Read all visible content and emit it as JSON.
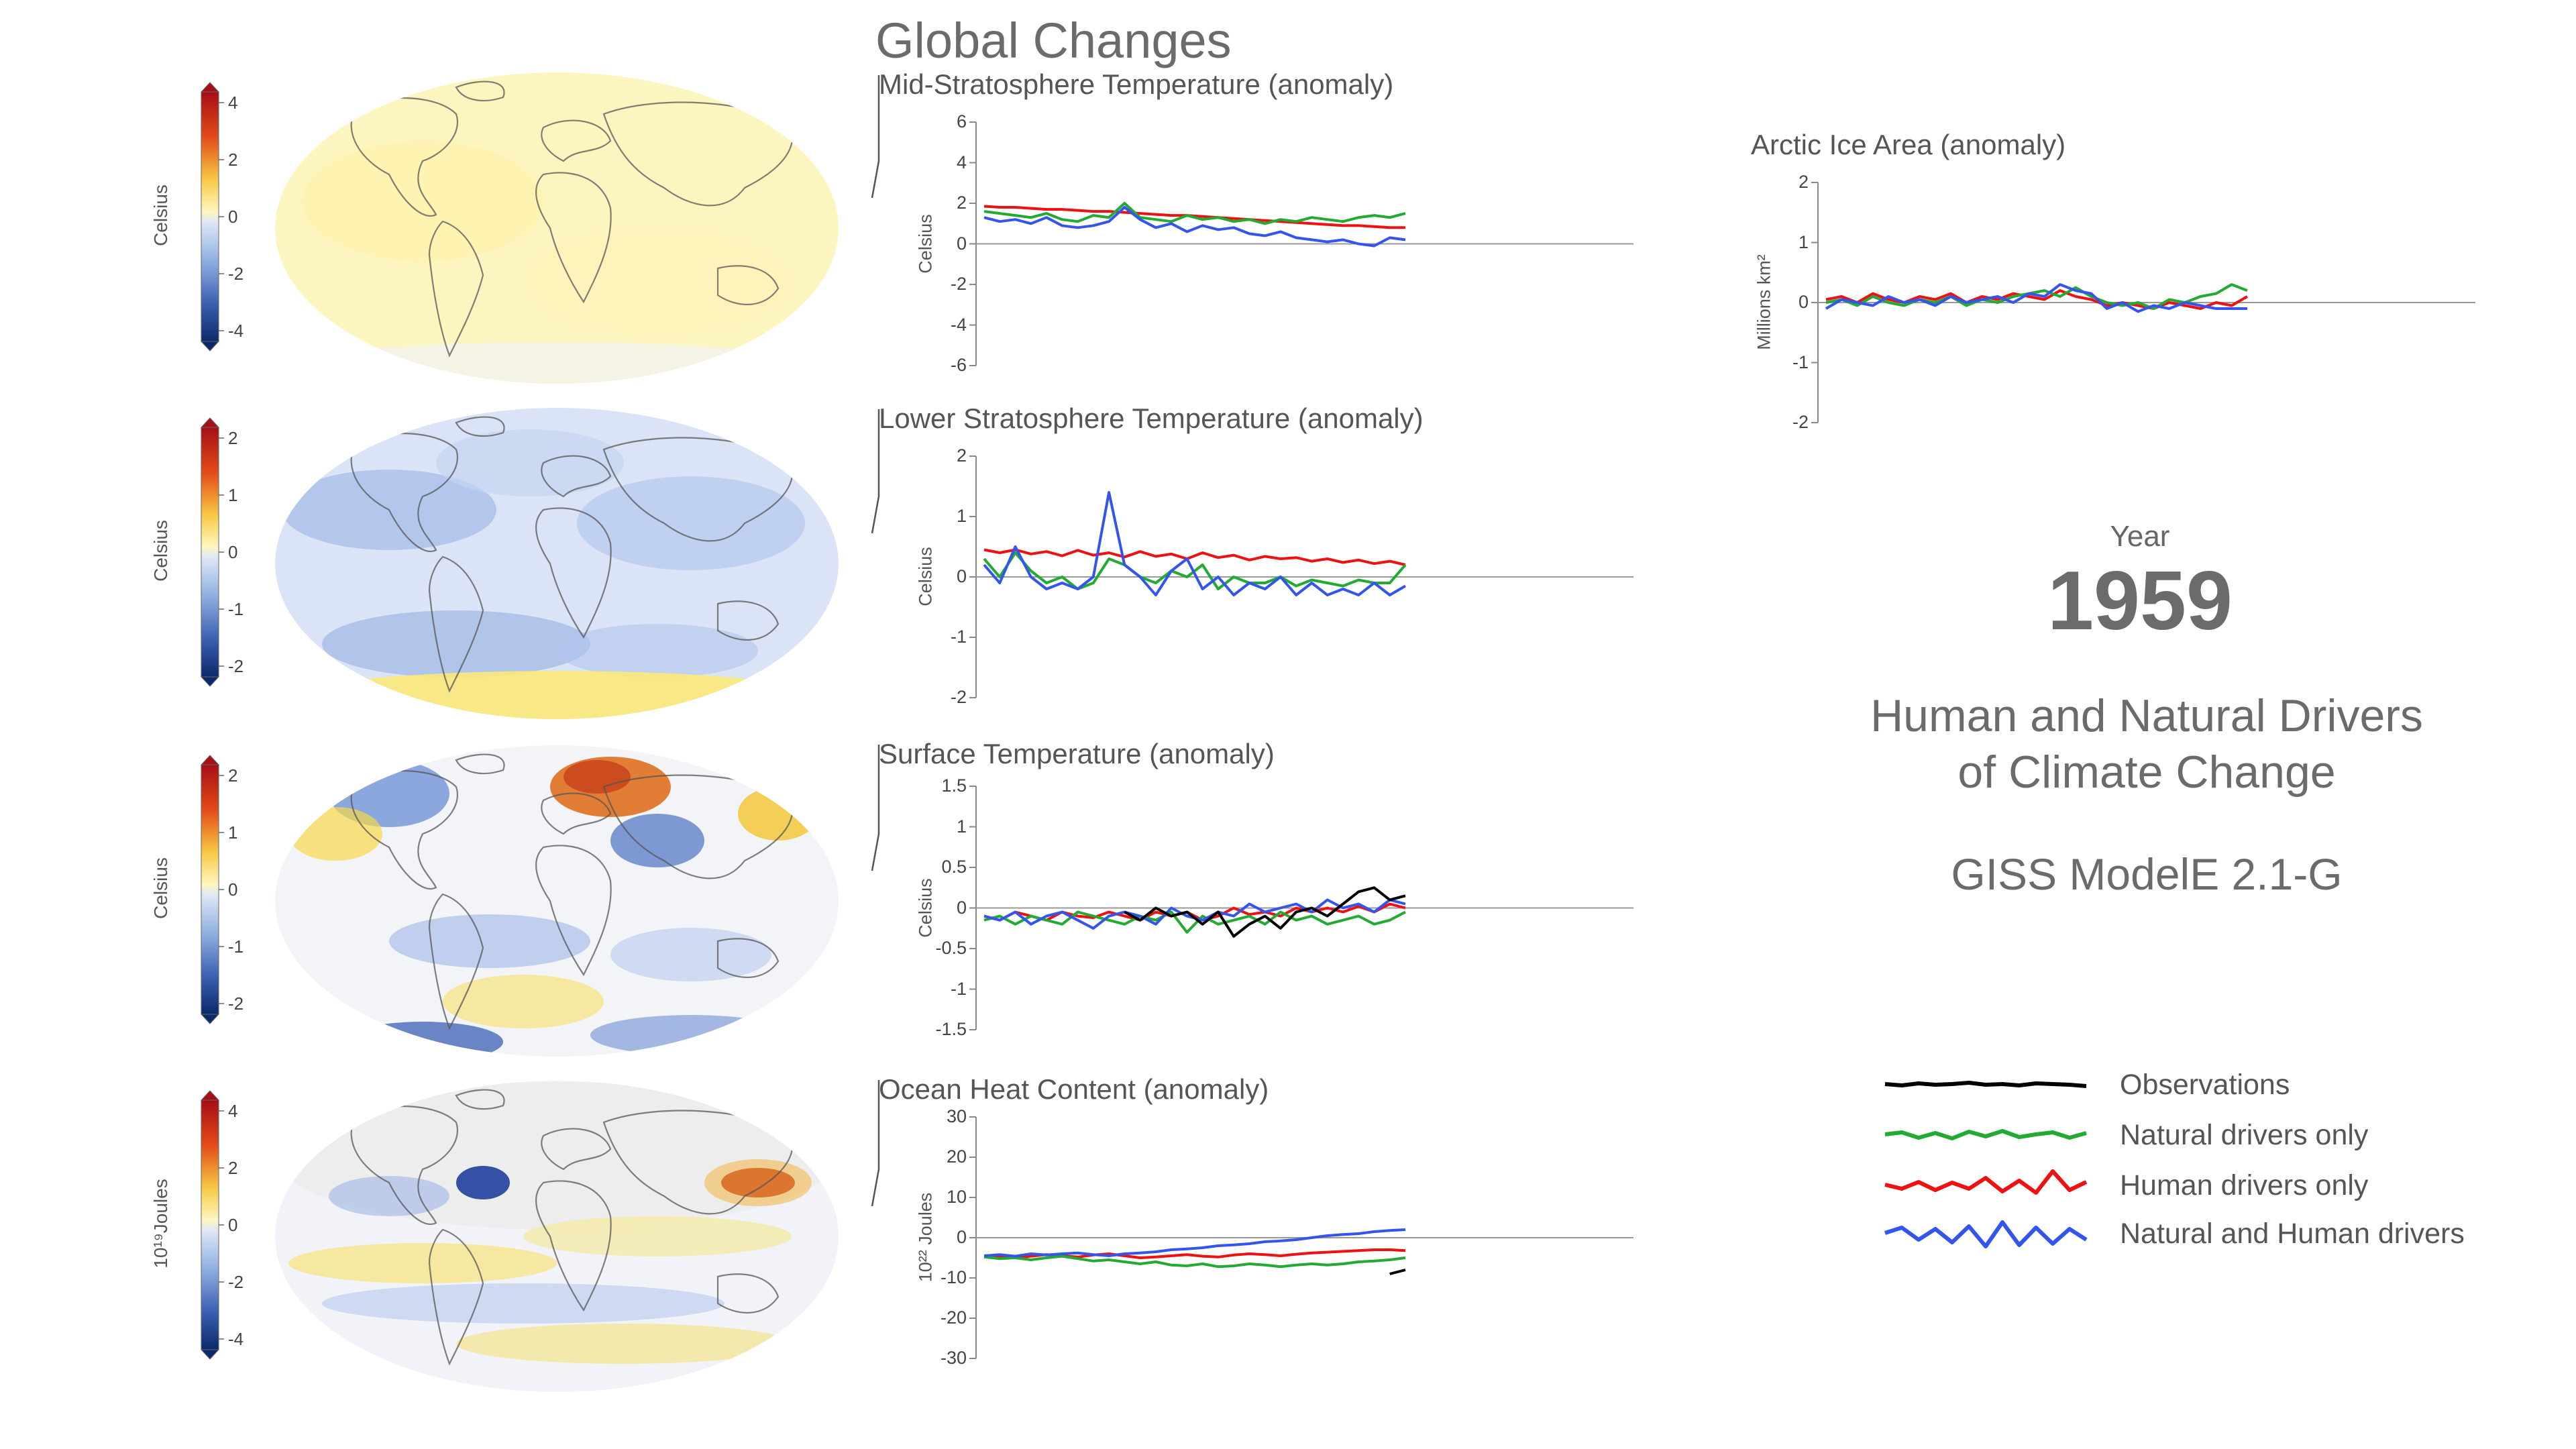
{
  "title": "Global Changes",
  "year_label": "Year",
  "year": "1959",
  "headline_line1": "Human and Natural Drivers",
  "headline_line2": "of Climate Change",
  "model": "GISS ModelE 2.1-G",
  "colors": {
    "observations": "#000000",
    "natural": "#22aa33",
    "human": "#ee1111",
    "both": "#3355ee",
    "axis": "#888888"
  },
  "legend": [
    {
      "label": "Observations",
      "color": "#000000"
    },
    {
      "label": "Natural drivers only",
      "color": "#22aa33"
    },
    {
      "label": "Human drivers only",
      "color": "#ee1111"
    },
    {
      "label": "Natural and Human drivers",
      "color": "#3355ee"
    }
  ],
  "maps": [
    {
      "id": "mid-strat",
      "cb_label": "Celsius",
      "cb_ticks": [
        "4",
        "2",
        "0",
        "-2",
        "-4"
      ],
      "shading": "yellow"
    },
    {
      "id": "lower-strat",
      "cb_label": "Celsius",
      "cb_ticks": [
        "2",
        "1",
        "0",
        "-1",
        "-2"
      ],
      "shading": "blue"
    },
    {
      "id": "surface",
      "cb_label": "Celsius",
      "cb_ticks": [
        "2",
        "1",
        "0",
        "-1",
        "-2"
      ],
      "shading": "mixed"
    },
    {
      "id": "ohc",
      "cb_label": "10¹⁹Joules",
      "cb_ticks": [
        "4",
        "2",
        "0",
        "-2",
        "-4"
      ],
      "shading": "mixed-light"
    }
  ],
  "chart_data": [
    {
      "type": "line",
      "title": "Mid-Stratosphere Temperature (anomaly)",
      "ylabel": "Celsius",
      "ylim": [
        -6,
        6
      ],
      "yticks": [
        "6",
        "4",
        "2",
        "0",
        "-2",
        "-4",
        "-6"
      ],
      "series": [
        {
          "name": "Human drivers only",
          "color": "#ee1111",
          "values": [
            1.85,
            1.8,
            1.8,
            1.75,
            1.7,
            1.7,
            1.65,
            1.6,
            1.6,
            1.55,
            1.5,
            1.45,
            1.4,
            1.4,
            1.35,
            1.3,
            1.25,
            1.2,
            1.15,
            1.1,
            1.05,
            1.0,
            0.95,
            0.9,
            0.9,
            0.85,
            0.8,
            0.8
          ]
        },
        {
          "name": "Natural drivers only",
          "color": "#22aa33",
          "values": [
            1.6,
            1.5,
            1.4,
            1.3,
            1.5,
            1.2,
            1.1,
            1.4,
            1.3,
            2.0,
            1.3,
            1.2,
            1.1,
            1.4,
            1.2,
            1.3,
            1.1,
            1.2,
            1.0,
            1.2,
            1.1,
            1.3,
            1.2,
            1.1,
            1.3,
            1.4,
            1.3,
            1.5
          ]
        },
        {
          "name": "Natural and Human drivers",
          "color": "#3355ee",
          "values": [
            1.3,
            1.1,
            1.2,
            1.0,
            1.3,
            0.9,
            0.8,
            0.9,
            1.1,
            1.8,
            1.2,
            0.8,
            1.0,
            0.6,
            0.9,
            0.7,
            0.8,
            0.5,
            0.4,
            0.6,
            0.3,
            0.2,
            0.1,
            0.2,
            0.0,
            -0.1,
            0.3,
            0.2
          ]
        }
      ]
    },
    {
      "type": "line",
      "title": "Lower Stratosphere Temperature (anomaly)",
      "ylabel": "Celsius",
      "ylim": [
        -2,
        2
      ],
      "yticks": [
        "2",
        "1",
        "0",
        "-1",
        "-2"
      ],
      "series": [
        {
          "name": "Human drivers only",
          "color": "#ee1111",
          "values": [
            0.45,
            0.4,
            0.45,
            0.38,
            0.42,
            0.35,
            0.44,
            0.36,
            0.4,
            0.33,
            0.42,
            0.34,
            0.38,
            0.3,
            0.4,
            0.32,
            0.36,
            0.28,
            0.34,
            0.3,
            0.32,
            0.26,
            0.3,
            0.24,
            0.28,
            0.22,
            0.26,
            0.2
          ]
        },
        {
          "name": "Natural drivers only",
          "color": "#22aa33",
          "values": [
            0.3,
            0.0,
            0.4,
            0.1,
            -0.1,
            0.0,
            -0.2,
            -0.1,
            0.3,
            0.2,
            0.0,
            -0.1,
            0.1,
            0.0,
            0.2,
            -0.2,
            0.0,
            -0.1,
            -0.1,
            0.0,
            -0.15,
            -0.05,
            -0.1,
            -0.15,
            -0.05,
            -0.1,
            -0.1,
            0.2
          ]
        },
        {
          "name": "Natural and Human drivers",
          "color": "#3355ee",
          "values": [
            0.2,
            -0.1,
            0.5,
            0.0,
            -0.2,
            -0.1,
            -0.2,
            0.0,
            1.4,
            0.2,
            0.0,
            -0.3,
            0.1,
            0.3,
            -0.2,
            0.0,
            -0.3,
            -0.1,
            -0.2,
            0.0,
            -0.3,
            -0.1,
            -0.3,
            -0.2,
            -0.3,
            -0.1,
            -0.3,
            -0.15
          ]
        }
      ]
    },
    {
      "type": "line",
      "title": "Surface Temperature (anomaly)",
      "ylabel": "Celsius",
      "ylim": [
        -1.5,
        1.5
      ],
      "yticks": [
        "1.5",
        "1",
        "0.5",
        "0",
        "-0.5",
        "-1",
        "-1.5"
      ],
      "series": [
        {
          "name": "Human drivers only",
          "color": "#ee1111",
          "values": [
            -0.1,
            -0.15,
            -0.05,
            -0.1,
            -0.15,
            -0.05,
            -0.1,
            -0.12,
            -0.05,
            -0.1,
            -0.15,
            -0.05,
            -0.1,
            -0.05,
            -0.15,
            -0.1,
            0.0,
            -0.08,
            -0.05,
            -0.1,
            0.0,
            -0.05,
            0.0,
            -0.05,
            0.02,
            -0.05,
            0.05,
            0.0
          ]
        },
        {
          "name": "Natural drivers only",
          "color": "#22aa33",
          "values": [
            -0.15,
            -0.1,
            -0.2,
            -0.1,
            -0.15,
            -0.2,
            -0.05,
            -0.1,
            -0.15,
            -0.2,
            -0.1,
            -0.15,
            -0.05,
            -0.3,
            -0.1,
            -0.2,
            -0.15,
            -0.1,
            -0.2,
            -0.05,
            -0.15,
            -0.1,
            -0.2,
            -0.15,
            -0.1,
            -0.2,
            -0.15,
            -0.05
          ]
        },
        {
          "name": "Natural and Human drivers",
          "color": "#3355ee",
          "values": [
            -0.1,
            -0.15,
            -0.05,
            -0.2,
            -0.1,
            -0.05,
            -0.15,
            -0.25,
            -0.1,
            -0.05,
            -0.1,
            -0.2,
            0.0,
            -0.1,
            -0.15,
            -0.05,
            -0.1,
            0.05,
            -0.05,
            0.0,
            0.05,
            -0.05,
            0.1,
            0.0,
            0.05,
            -0.05,
            0.1,
            0.05
          ]
        },
        {
          "name": "Observations",
          "color": "#000000",
          "values": [
            null,
            null,
            null,
            null,
            null,
            null,
            null,
            null,
            null,
            -0.05,
            -0.15,
            0.0,
            -0.1,
            -0.05,
            -0.2,
            -0.05,
            -0.35,
            -0.2,
            -0.1,
            -0.25,
            -0.05,
            0.0,
            -0.1,
            0.05,
            0.2,
            0.25,
            0.1,
            0.15
          ]
        }
      ]
    },
    {
      "type": "line",
      "title": "Ocean Heat Content (anomaly)",
      "ylabel": "10²² Joules",
      "ylim": [
        -30,
        30
      ],
      "yticks": [
        "30",
        "20",
        "10",
        "0",
        "-10",
        "-20",
        "-30"
      ],
      "series": [
        {
          "name": "Human drivers only",
          "color": "#ee1111",
          "values": [
            -4.5,
            -4.8,
            -5.0,
            -4.6,
            -4.2,
            -4.5,
            -4.8,
            -4.3,
            -4.0,
            -4.5,
            -5.0,
            -4.8,
            -4.5,
            -4.2,
            -4.6,
            -4.8,
            -4.3,
            -4.0,
            -4.2,
            -4.5,
            -4.1,
            -3.8,
            -3.6,
            -3.4,
            -3.2,
            -3.0,
            -3.0,
            -3.2
          ]
        },
        {
          "name": "Natural drivers only",
          "color": "#22aa33",
          "values": [
            -4.8,
            -5.2,
            -5.0,
            -5.5,
            -5.0,
            -4.6,
            -5.2,
            -5.8,
            -5.5,
            -6.0,
            -6.5,
            -6.0,
            -6.8,
            -7.0,
            -6.5,
            -7.2,
            -7.0,
            -6.5,
            -6.8,
            -7.2,
            -6.8,
            -6.5,
            -6.8,
            -6.5,
            -6.0,
            -5.8,
            -5.5,
            -5.0
          ]
        },
        {
          "name": "Natural and Human drivers",
          "color": "#3355ee",
          "values": [
            -4.5,
            -4.2,
            -4.6,
            -4.0,
            -4.3,
            -4.0,
            -3.8,
            -4.2,
            -4.5,
            -4.0,
            -3.8,
            -3.5,
            -3.0,
            -2.8,
            -2.5,
            -2.0,
            -1.8,
            -1.5,
            -1.0,
            -0.8,
            -0.5,
            0.0,
            0.5,
            0.8,
            1.0,
            1.5,
            1.8,
            2.0
          ]
        },
        {
          "name": "Observations",
          "color": "#000000",
          "values": [
            null,
            null,
            null,
            null,
            null,
            null,
            null,
            null,
            null,
            null,
            null,
            null,
            null,
            null,
            null,
            null,
            null,
            null,
            null,
            null,
            null,
            null,
            null,
            null,
            null,
            null,
            -9.0,
            -8.0
          ]
        }
      ]
    },
    {
      "type": "line",
      "title": "Arctic Ice Area (anomaly)",
      "ylabel": "Millions km²",
      "ylim": [
        -2,
        2
      ],
      "yticks": [
        "2",
        "1",
        "0",
        "-1",
        "-2"
      ],
      "series": [
        {
          "name": "Human drivers only",
          "color": "#ee1111",
          "values": [
            0.05,
            0.1,
            0.0,
            0.15,
            0.05,
            0.0,
            0.1,
            0.05,
            0.15,
            0.0,
            0.1,
            0.05,
            0.15,
            0.1,
            0.05,
            0.2,
            0.1,
            0.05,
            -0.05,
            0.0,
            -0.05,
            -0.1,
            0.0,
            -0.05,
            -0.1,
            0.0,
            -0.05,
            0.1
          ]
        },
        {
          "name": "Natural drivers only",
          "color": "#22aa33",
          "values": [
            0.0,
            0.05,
            -0.05,
            0.1,
            0.0,
            -0.05,
            0.05,
            0.0,
            0.1,
            -0.05,
            0.05,
            0.0,
            0.1,
            0.15,
            0.2,
            0.1,
            0.25,
            0.1,
            0.0,
            -0.05,
            0.0,
            -0.1,
            0.05,
            0.0,
            0.1,
            0.15,
            0.3,
            0.2
          ]
        },
        {
          "name": "Natural and Human drivers",
          "color": "#3355ee",
          "values": [
            -0.1,
            0.05,
            0.0,
            -0.05,
            0.1,
            0.0,
            0.05,
            -0.05,
            0.1,
            0.0,
            0.05,
            0.1,
            0.0,
            0.15,
            0.1,
            0.3,
            0.2,
            0.15,
            -0.1,
            0.0,
            -0.15,
            -0.05,
            -0.1,
            0.0,
            -0.05,
            -0.1,
            -0.1,
            -0.1
          ]
        }
      ]
    }
  ]
}
